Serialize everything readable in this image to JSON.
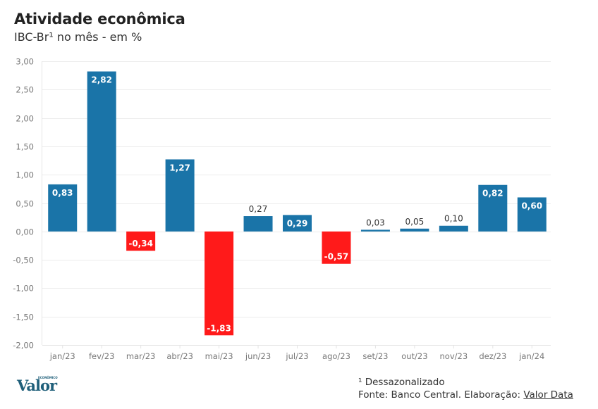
{
  "header": {
    "title": "Atividade econômica",
    "subtitle": "IBC-Br¹ no mês - em %"
  },
  "colors": {
    "positive": "#1a74a8",
    "negative": "#ff1a1a",
    "grid": "#ececec"
  },
  "chart_data": {
    "type": "bar",
    "title": "Atividade econômica",
    "subtitle": "IBC-Br¹ no mês - em %",
    "xlabel": "",
    "ylabel": "",
    "ylim": [
      -2.0,
      3.0
    ],
    "yticks": [
      3.0,
      2.5,
      2.0,
      1.5,
      1.0,
      0.5,
      0.0,
      -0.5,
      -1.0,
      -1.5,
      -2.0
    ],
    "ytick_labels": [
      "3,00",
      "2,50",
      "2,00",
      "1,50",
      "1,00",
      "0,50",
      "0,00",
      "-0,50",
      "-1,00",
      "-1,50",
      "-2,00"
    ],
    "grid": true,
    "legend": "none",
    "categories": [
      "jan/23",
      "fev/23",
      "mar/23",
      "abr/23",
      "mai/23",
      "jun/23",
      "jul/23",
      "ago/23",
      "set/23",
      "out/23",
      "nov/23",
      "dez/23",
      "jan/24"
    ],
    "values": [
      0.83,
      2.82,
      -0.34,
      1.27,
      -1.83,
      0.27,
      0.29,
      -0.57,
      0.03,
      0.05,
      0.1,
      0.82,
      0.6
    ],
    "value_labels": [
      "0,83",
      "2,82",
      "-0,34",
      "1,27",
      "-1,83",
      "0,27",
      "0,29",
      "-0,57",
      "0,03",
      "0,05",
      "0,10",
      "0,82",
      "0,60"
    ]
  },
  "footer": {
    "logo": "Valor",
    "logo_sup": "ECONÔMICO",
    "note": "¹ Dessazonalizado",
    "source_prefix": "Fonte: Banco Central. Elaboração: ",
    "source_link": "Valor Data"
  }
}
